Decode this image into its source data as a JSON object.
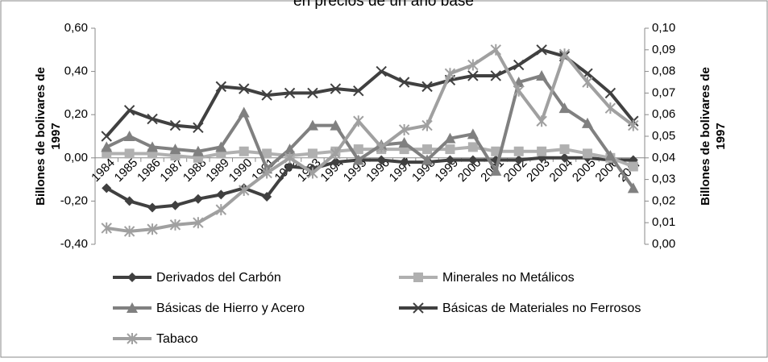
{
  "chart_data": {
    "type": "line",
    "title": "en precios de un año base",
    "y_label": "Billones de bolivares de 1997",
    "y2_label": "Billones de bolivares de 1997",
    "categories": [
      "1984",
      "1985",
      "1986",
      "1987",
      "1988",
      "1989",
      "1990",
      "1991",
      "1992",
      "1993",
      "1994",
      "1995",
      "1996",
      "1997",
      "1998",
      "1999",
      "2000",
      "2001",
      "2002",
      "2003",
      "2004",
      "2005",
      "2006",
      "2007"
    ],
    "ylim": [
      -0.4,
      0.6
    ],
    "yticks": [
      {
        "value": -0.4,
        "label": "-0,40"
      },
      {
        "value": -0.2,
        "label": "-0,20"
      },
      {
        "value": 0,
        "label": "0,00"
      },
      {
        "value": 0.2,
        "label": "0,20"
      },
      {
        "value": 0.4,
        "label": "0,40"
      },
      {
        "value": 0.6,
        "label": "0,60"
      }
    ],
    "y2lim": [
      0,
      0.1
    ],
    "y2ticks": [
      {
        "value": 0,
        "label": "0,00"
      },
      {
        "value": 0.01,
        "label": "0,01"
      },
      {
        "value": 0.02,
        "label": "0,02"
      },
      {
        "value": 0.03,
        "label": "0,03"
      },
      {
        "value": 0.04,
        "label": "0,04"
      },
      {
        "value": 0.05,
        "label": "0,05"
      },
      {
        "value": 0.06,
        "label": "0,06"
      },
      {
        "value": 0.07,
        "label": "0,07"
      },
      {
        "value": 0.08,
        "label": "0,08"
      },
      {
        "value": 0.09,
        "label": "0,09"
      },
      {
        "value": 0.1,
        "label": "0,10"
      }
    ],
    "grid": false,
    "legend": "bottom",
    "series": [
      {
        "name": "Derivados del Carbón",
        "color": "#404040",
        "marker": "diamond",
        "values": [
          -0.14,
          -0.2,
          -0.23,
          -0.22,
          -0.19,
          -0.17,
          -0.14,
          -0.18,
          -0.04,
          -0.05,
          -0.02,
          -0.01,
          -0.01,
          -0.02,
          -0.02,
          -0.01,
          -0.01,
          -0.01,
          -0.01,
          0,
          0,
          0,
          -0.01,
          -0.01
        ]
      },
      {
        "name": "Minerales no Metálicos",
        "color": "#b0b0b0",
        "marker": "square",
        "values": [
          0.02,
          0.02,
          0.02,
          0.01,
          0,
          0.02,
          0.03,
          0.02,
          0.01,
          0.02,
          0.03,
          0.04,
          0.04,
          0.04,
          0.04,
          0.04,
          0.05,
          0.03,
          0.03,
          0.03,
          0.04,
          0.02,
          0,
          -0.04
        ]
      },
      {
        "name": "Básicas de Hierro y Acero",
        "color": "#808080",
        "marker": "triangle",
        "values": [
          0.05,
          0.1,
          0.05,
          0.04,
          0.03,
          0.05,
          0.21,
          -0.05,
          0.04,
          0.15,
          0.15,
          -0.01,
          0.06,
          0.07,
          -0.01,
          0.09,
          0.11,
          -0.06,
          0.35,
          0.38,
          0.23,
          0.16,
          0.01,
          -0.14
        ]
      },
      {
        "name": "Básicas de Materiales no Ferrosos",
        "color": "#404040",
        "marker": "x",
        "values": [
          0.1,
          0.22,
          0.18,
          0.15,
          0.14,
          0.33,
          0.32,
          0.29,
          0.3,
          0.3,
          0.32,
          0.31,
          0.4,
          0.35,
          0.33,
          0.36,
          0.38,
          0.38,
          0.43,
          0.5,
          0.47,
          0.39,
          0.3,
          0.17
        ]
      },
      {
        "name": "Tabaco",
        "color": "#a0a0a0",
        "marker": "star",
        "axis": "y2",
        "values": [
          0.0075,
          0.006,
          0.007,
          0.009,
          0.01,
          0.016,
          0.025,
          0.033,
          0.04,
          0.033,
          0.042,
          0.057,
          0.045,
          0.053,
          0.055,
          0.079,
          0.083,
          0.09,
          0.071,
          0.057,
          0.088,
          0.075,
          0.063,
          0.055
        ]
      }
    ]
  }
}
